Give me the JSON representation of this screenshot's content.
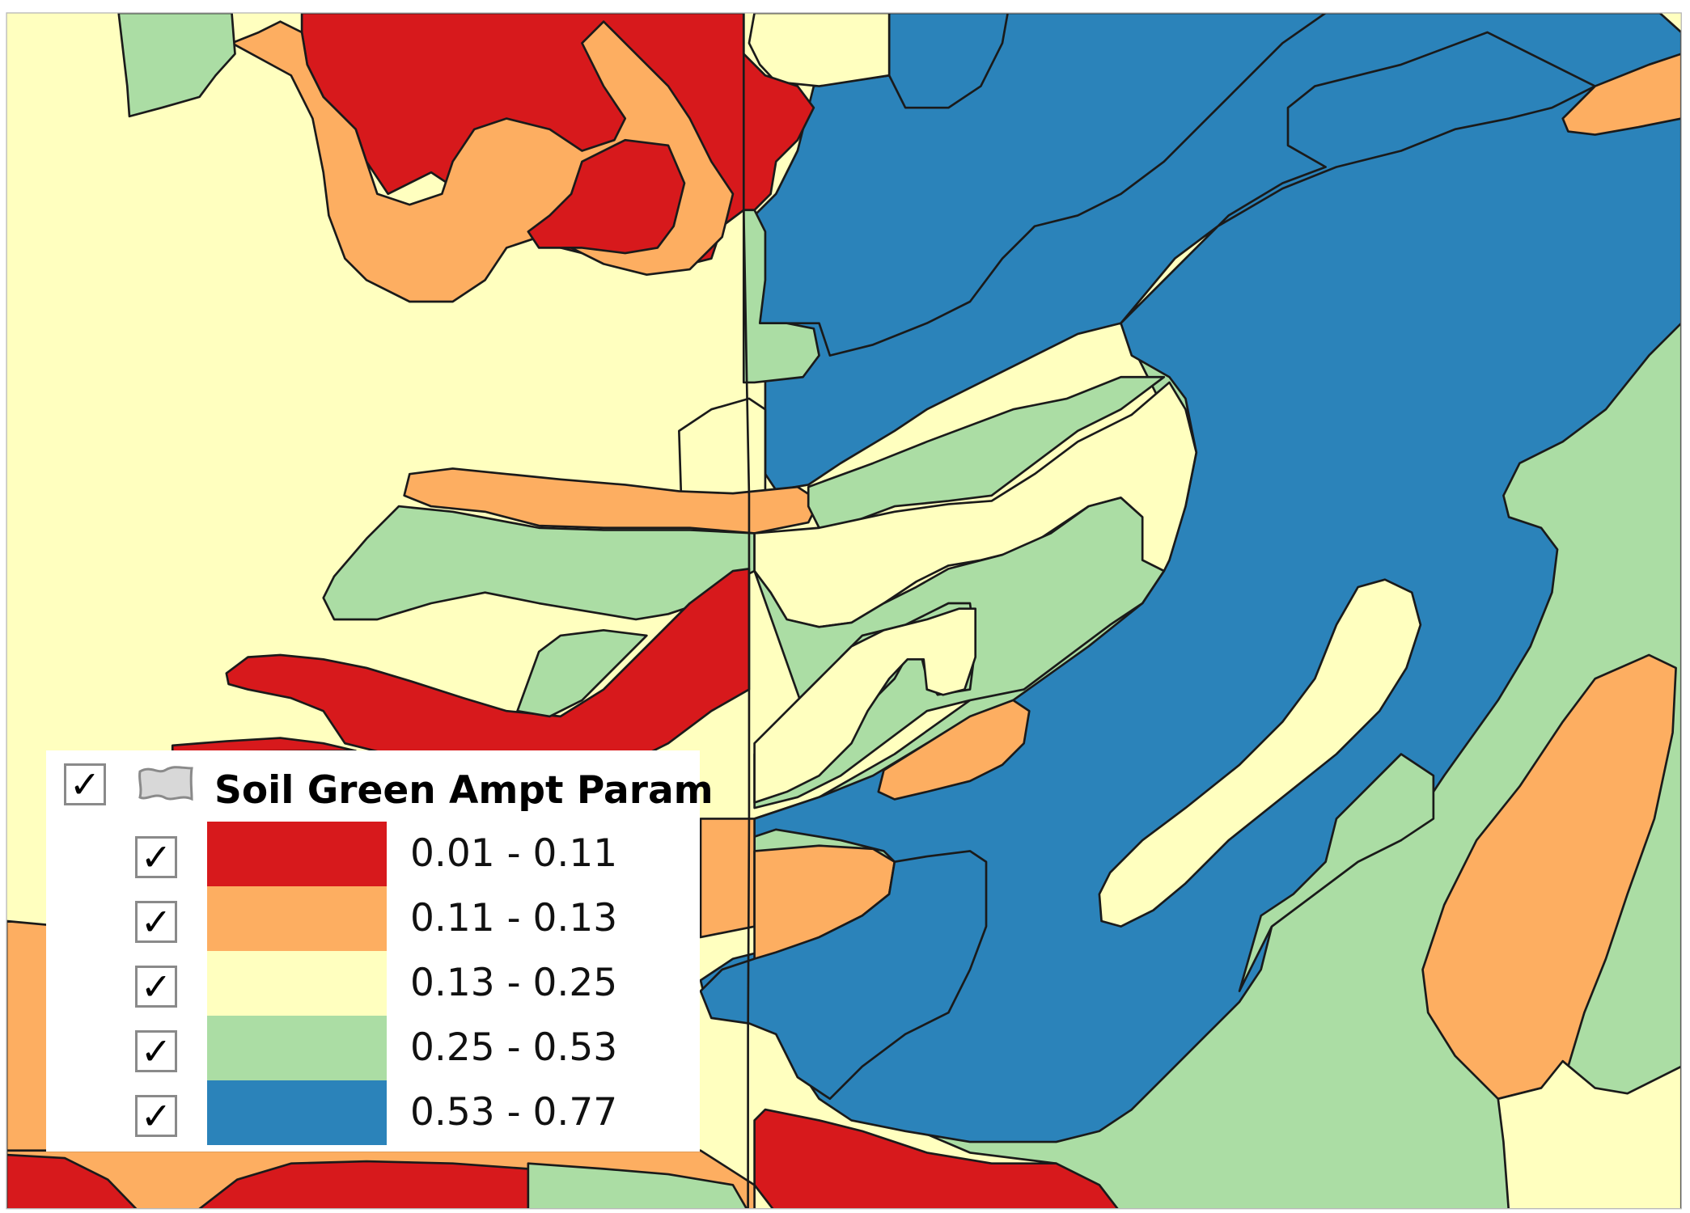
{
  "legend": {
    "layer_title": "Soil Green Ampt Param",
    "layer_visible": true,
    "layer_icon": "polygon-layer-icon",
    "classes": [
      {
        "label": "0.01 - 0.11",
        "color": "#d7191c",
        "checked": true
      },
      {
        "label": "0.11 - 0.13",
        "color": "#fdae61",
        "checked": true
      },
      {
        "label": "0.13 - 0.25",
        "color": "#ffffbf",
        "checked": true
      },
      {
        "label": "0.25 - 0.53",
        "color": "#abdda4",
        "checked": true
      },
      {
        "label": "0.53 - 0.77",
        "color": "#2b83ba",
        "checked": true
      }
    ]
  },
  "checkmark_glyph": "✓",
  "outline_color": "#1a1a1a"
}
